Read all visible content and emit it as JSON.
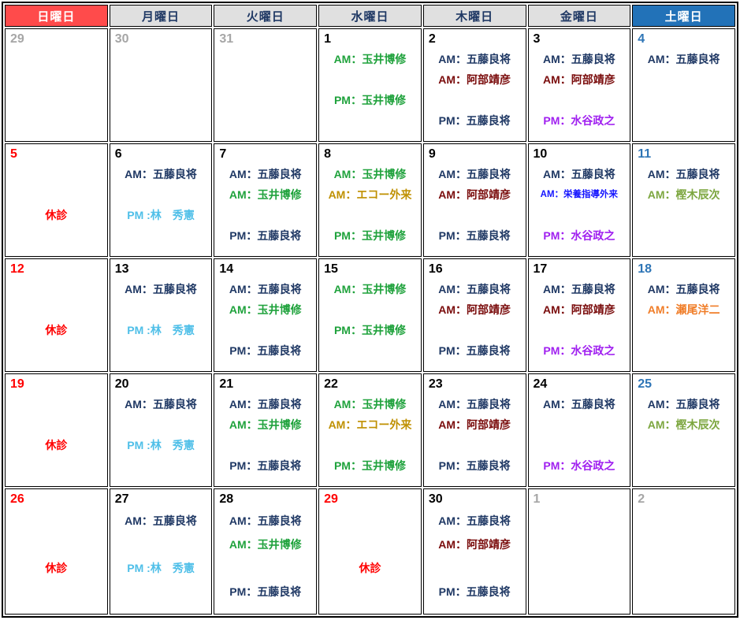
{
  "colors": {
    "black": "#000000",
    "red": "#FF0000",
    "saturday_blue": "#2E75B6",
    "outside_gray": "#A6A6A6",
    "navy": "#1F3864",
    "green": "#1FA23C",
    "darkred": "#7A0C0C",
    "purple": "#A020F0",
    "cyan": "#4FBFE8",
    "gold": "#BF9000",
    "blue": "#1414FF",
    "lightgreen": "#7CA63F",
    "orange": "#F07D28",
    "header_sunday_bg": "#FF4B4B",
    "header_weekday_bg": "#E0E0E0",
    "header_saturday_bg": "#2272B8",
    "header_weekday_text": "#1F3864",
    "header_light_text": "#FFFFFF"
  },
  "calendar": {
    "day_headers": [
      {
        "label": "日曜日",
        "key": "sunday",
        "type": "sunday"
      },
      {
        "label": "月曜日",
        "key": "monday",
        "type": "weekday"
      },
      {
        "label": "火曜日",
        "key": "tuesday",
        "type": "weekday"
      },
      {
        "label": "水曜日",
        "key": "wednesday",
        "type": "weekday"
      },
      {
        "label": "木曜日",
        "key": "thursday",
        "type": "weekday"
      },
      {
        "label": "金曜日",
        "key": "friday",
        "type": "weekday"
      },
      {
        "label": "土曜日",
        "key": "saturday",
        "type": "saturday"
      }
    ],
    "weeks": [
      {
        "tall": false,
        "days": [
          {
            "num": "29",
            "num_color": "outside_gray",
            "lines": [
              null,
              null,
              null,
              null
            ]
          },
          {
            "num": "30",
            "num_color": "outside_gray",
            "lines": [
              null,
              null,
              null,
              null
            ]
          },
          {
            "num": "31",
            "num_color": "outside_gray",
            "lines": [
              null,
              null,
              null,
              null
            ]
          },
          {
            "num": "1",
            "num_color": "black",
            "lines": [
              {
                "text": "AM：玉井博修",
                "color": "green"
              },
              null,
              {
                "text": "PM：玉井博修",
                "color": "green"
              },
              null
            ]
          },
          {
            "num": "2",
            "num_color": "black",
            "lines": [
              {
                "text": "AM：五藤良将",
                "color": "navy"
              },
              {
                "text": "AM：阿部靖彦",
                "color": "darkred"
              },
              null,
              {
                "text": "PM：五藤良将",
                "color": "navy"
              }
            ]
          },
          {
            "num": "3",
            "num_color": "black",
            "lines": [
              {
                "text": "AM：五藤良将",
                "color": "navy"
              },
              {
                "text": "AM：阿部靖彦",
                "color": "darkred"
              },
              null,
              {
                "text": "PM：水谷政之",
                "color": "purple"
              }
            ]
          },
          {
            "num": "4",
            "num_color": "saturday_blue",
            "lines": [
              {
                "text": "AM：五藤良将",
                "color": "navy"
              },
              null,
              null,
              null
            ]
          }
        ]
      },
      {
        "tall": false,
        "days": [
          {
            "num": "5",
            "num_color": "red",
            "lines": [
              null,
              null,
              {
                "text": "休診",
                "color": "red",
                "name": "closed-label"
              },
              null
            ]
          },
          {
            "num": "6",
            "num_color": "black",
            "lines": [
              {
                "text": "AM：五藤良将",
                "color": "navy"
              },
              null,
              {
                "text": "PM :林　秀憲",
                "color": "cyan"
              },
              null
            ]
          },
          {
            "num": "7",
            "num_color": "black",
            "lines": [
              {
                "text": "AM：五藤良将",
                "color": "navy"
              },
              {
                "text": "AM：玉井博修",
                "color": "green"
              },
              null,
              {
                "text": "PM：五藤良将",
                "color": "navy"
              }
            ]
          },
          {
            "num": "8",
            "num_color": "black",
            "lines": [
              {
                "text": "AM：玉井博修",
                "color": "green"
              },
              {
                "text": "AM：エコー外来",
                "color": "gold"
              },
              null,
              {
                "text": "PM：玉井博修",
                "color": "green"
              }
            ]
          },
          {
            "num": "9",
            "num_color": "black",
            "lines": [
              {
                "text": "AM：五藤良将",
                "color": "navy"
              },
              {
                "text": "AM：阿部靖彦",
                "color": "darkred"
              },
              null,
              {
                "text": "PM：五藤良将",
                "color": "navy"
              }
            ]
          },
          {
            "num": "10",
            "num_color": "black",
            "lines": [
              {
                "text": "AM：五藤良将",
                "color": "navy"
              },
              {
                "text": "AM：栄養指導外来",
                "color": "blue",
                "small": true
              },
              null,
              {
                "text": "PM：水谷政之",
                "color": "purple"
              }
            ]
          },
          {
            "num": "11",
            "num_color": "saturday_blue",
            "lines": [
              {
                "text": "AM：五藤良将",
                "color": "navy"
              },
              {
                "text": "AM：樫木辰次",
                "color": "lightgreen"
              },
              null,
              null
            ]
          }
        ]
      },
      {
        "tall": false,
        "days": [
          {
            "num": "12",
            "num_color": "red",
            "lines": [
              null,
              null,
              {
                "text": "休診",
                "color": "red",
                "name": "closed-label"
              },
              null
            ]
          },
          {
            "num": "13",
            "num_color": "black",
            "lines": [
              {
                "text": "AM：五藤良将",
                "color": "navy"
              },
              null,
              {
                "text": "PM :林　秀憲",
                "color": "cyan"
              },
              null
            ]
          },
          {
            "num": "14",
            "num_color": "black",
            "lines": [
              {
                "text": "AM：五藤良将",
                "color": "navy"
              },
              {
                "text": "AM：玉井博修",
                "color": "green"
              },
              null,
              {
                "text": "PM：五藤良将",
                "color": "navy"
              }
            ]
          },
          {
            "num": "15",
            "num_color": "black",
            "lines": [
              {
                "text": "AM：玉井博修",
                "color": "green"
              },
              null,
              {
                "text": "PM：玉井博修",
                "color": "green"
              },
              null
            ]
          },
          {
            "num": "16",
            "num_color": "black",
            "lines": [
              {
                "text": "AM：五藤良将",
                "color": "navy"
              },
              {
                "text": "AM：阿部靖彦",
                "color": "darkred"
              },
              null,
              {
                "text": "PM：五藤良将",
                "color": "navy"
              }
            ]
          },
          {
            "num": "17",
            "num_color": "black",
            "lines": [
              {
                "text": "AM：五藤良将",
                "color": "navy"
              },
              {
                "text": "AM：阿部靖彦",
                "color": "darkred"
              },
              null,
              {
                "text": "PM：水谷政之",
                "color": "purple"
              }
            ]
          },
          {
            "num": "18",
            "num_color": "saturday_blue",
            "lines": [
              {
                "text": "AM：五藤良将",
                "color": "navy"
              },
              {
                "text": "AM：瀬尾洋二",
                "color": "orange"
              },
              null,
              null
            ]
          }
        ]
      },
      {
        "tall": false,
        "days": [
          {
            "num": "19",
            "num_color": "red",
            "lines": [
              null,
              null,
              {
                "text": "休診",
                "color": "red",
                "name": "closed-label"
              },
              null
            ]
          },
          {
            "num": "20",
            "num_color": "black",
            "lines": [
              {
                "text": "AM：五藤良将",
                "color": "navy"
              },
              null,
              {
                "text": "PM :林　秀憲",
                "color": "cyan"
              },
              null
            ]
          },
          {
            "num": "21",
            "num_color": "black",
            "lines": [
              {
                "text": "AM：五藤良将",
                "color": "navy"
              },
              {
                "text": "AM：玉井博修",
                "color": "green"
              },
              null,
              {
                "text": "PM：五藤良将",
                "color": "navy"
              }
            ]
          },
          {
            "num": "22",
            "num_color": "black",
            "lines": [
              {
                "text": "AM：玉井博修",
                "color": "green"
              },
              {
                "text": "AM：エコー外来",
                "color": "gold"
              },
              null,
              {
                "text": "PM：玉井博修",
                "color": "green"
              }
            ]
          },
          {
            "num": "23",
            "num_color": "black",
            "lines": [
              {
                "text": "AM：五藤良将",
                "color": "navy"
              },
              {
                "text": "AM：阿部靖彦",
                "color": "darkred"
              },
              null,
              {
                "text": "PM：五藤良将",
                "color": "navy"
              }
            ]
          },
          {
            "num": "24",
            "num_color": "black",
            "lines": [
              {
                "text": "AM：五藤良将",
                "color": "navy"
              },
              null,
              null,
              {
                "text": "PM：水谷政之",
                "color": "purple"
              }
            ]
          },
          {
            "num": "25",
            "num_color": "saturday_blue",
            "lines": [
              {
                "text": "AM：五藤良将",
                "color": "navy"
              },
              {
                "text": "AM：樫木辰次",
                "color": "lightgreen"
              },
              null,
              null
            ]
          }
        ]
      },
      {
        "tall": true,
        "days": [
          {
            "num": "26",
            "num_color": "red",
            "lines": [
              null,
              null,
              {
                "text": "休診",
                "color": "red",
                "name": "closed-label"
              },
              null
            ]
          },
          {
            "num": "27",
            "num_color": "black",
            "lines": [
              {
                "text": "AM：五藤良将",
                "color": "navy"
              },
              null,
              {
                "text": "PM :林　秀憲",
                "color": "cyan"
              },
              null
            ]
          },
          {
            "num": "28",
            "num_color": "black",
            "lines": [
              {
                "text": "AM：五藤良将",
                "color": "navy"
              },
              {
                "text": "AM：玉井博修",
                "color": "green"
              },
              null,
              {
                "text": "PM：五藤良将",
                "color": "navy"
              }
            ]
          },
          {
            "num": "29",
            "num_color": "red",
            "lines": [
              null,
              null,
              {
                "text": "休診",
                "color": "red",
                "name": "closed-label"
              },
              null
            ]
          },
          {
            "num": "30",
            "num_color": "black",
            "lines": [
              {
                "text": "AM：五藤良将",
                "color": "navy"
              },
              {
                "text": "AM：阿部靖彦",
                "color": "darkred"
              },
              null,
              {
                "text": "PM：五藤良将",
                "color": "navy"
              }
            ]
          },
          {
            "num": "1",
            "num_color": "outside_gray",
            "lines": [
              null,
              null,
              null,
              null
            ]
          },
          {
            "num": "2",
            "num_color": "outside_gray",
            "lines": [
              null,
              null,
              null,
              null
            ]
          }
        ]
      }
    ]
  }
}
